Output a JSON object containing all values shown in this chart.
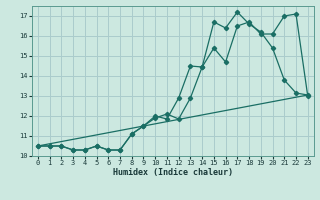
{
  "xlabel": "Humidex (Indice chaleur)",
  "bg_color": "#cce8e0",
  "grid_color": "#aacccc",
  "line_color": "#1a6e64",
  "xlim": [
    -0.5,
    23.5
  ],
  "ylim": [
    10.0,
    17.5
  ],
  "yticks": [
    10,
    11,
    12,
    13,
    14,
    15,
    16,
    17
  ],
  "xticks": [
    0,
    1,
    2,
    3,
    4,
    5,
    6,
    7,
    8,
    9,
    10,
    11,
    12,
    13,
    14,
    15,
    16,
    17,
    18,
    19,
    20,
    21,
    22,
    23
  ],
  "curve1_x": [
    0,
    1,
    2,
    3,
    4,
    5,
    6,
    7,
    8,
    9,
    10,
    11,
    12,
    13,
    14,
    15,
    16,
    17,
    18,
    19,
    20,
    21,
    22,
    23
  ],
  "curve1_y": [
    10.5,
    10.5,
    10.5,
    10.3,
    10.3,
    10.5,
    10.3,
    10.3,
    11.1,
    11.5,
    11.9,
    12.1,
    11.85,
    12.9,
    14.45,
    15.4,
    14.7,
    16.5,
    16.7,
    16.1,
    16.1,
    17.0,
    17.1,
    13.0
  ],
  "curve2_x": [
    0,
    1,
    2,
    3,
    4,
    5,
    6,
    7,
    8,
    9,
    10,
    11,
    12,
    13,
    14,
    15,
    16,
    17,
    18,
    19,
    20,
    21,
    22,
    23
  ],
  "curve2_y": [
    10.5,
    10.5,
    10.5,
    10.3,
    10.3,
    10.5,
    10.3,
    10.3,
    11.1,
    11.5,
    12.0,
    11.85,
    12.9,
    14.5,
    14.45,
    16.7,
    16.4,
    17.2,
    16.6,
    16.2,
    15.4,
    13.8,
    13.15,
    13.05
  ],
  "curve3_x": [
    0,
    23
  ],
  "curve3_y": [
    10.5,
    13.05
  ]
}
